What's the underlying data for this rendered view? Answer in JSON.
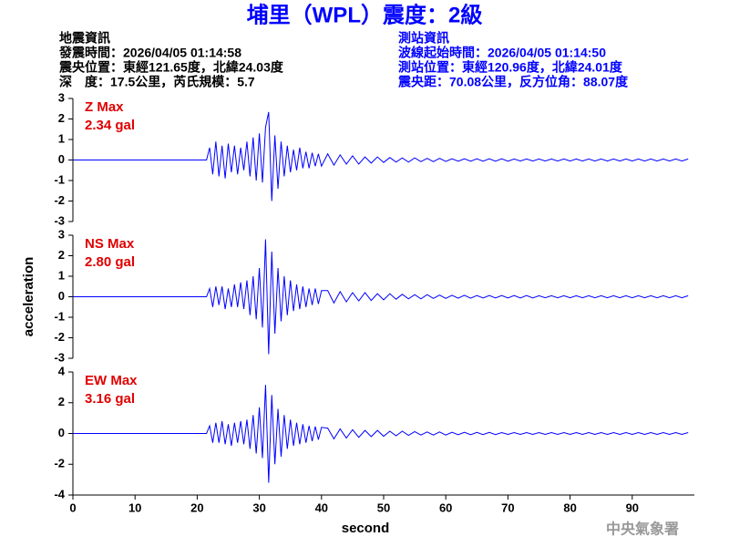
{
  "header": {
    "title": "埔里（WPL）震度：2級",
    "left": [
      "地震資訊",
      "發震時間：2026/04/05 01:14:58",
      "震央位置：東經121.65度，北緯24.03度",
      "深　度：17.5公里，芮氏規模：5.7"
    ],
    "right": [
      "測站資訊",
      "波線起始時間：2026/04/05 01:14:50",
      "測站位置：東經120.96度，北緯24.01度",
      "震央距：70.08公里，反方位角：88.07度"
    ],
    "credit": "中央氣象署"
  },
  "chart_data": [
    {
      "type": "line",
      "annotations": [
        "Z Max",
        "2.34 gal"
      ],
      "xlim": [
        0,
        100
      ],
      "ylim": [
        -3,
        3
      ],
      "yticks": [
        -3,
        -2,
        -1,
        0,
        1,
        2,
        3
      ],
      "x": [
        0,
        21.5,
        22,
        22.5,
        23,
        23.5,
        24,
        24.5,
        25,
        25.5,
        26,
        26.5,
        27,
        27.5,
        28,
        28.5,
        29,
        29.5,
        30,
        30.5,
        31,
        31.5,
        32,
        32.5,
        33,
        33.5,
        34,
        34.5,
        35,
        35.5,
        36,
        36.5,
        37,
        37.5,
        38,
        38.5,
        39,
        39.5,
        40,
        41,
        42,
        43,
        44,
        45,
        46,
        47,
        48,
        49,
        50,
        51,
        52,
        53,
        54,
        55,
        56,
        57,
        58,
        59,
        60,
        61,
        62,
        63,
        64,
        65,
        66,
        67,
        68,
        69,
        70,
        71,
        72,
        73,
        74,
        75,
        76,
        77,
        78,
        79,
        80,
        81,
        82,
        83,
        84,
        85,
        86,
        87,
        88,
        89,
        90,
        91,
        92,
        93,
        94,
        95,
        96,
        97,
        98,
        99
      ],
      "series": [
        {
          "name": "Z",
          "color": "#0000ff",
          "values": [
            0,
            0,
            0.6,
            -0.7,
            0.9,
            -0.8,
            0.7,
            -0.9,
            0.8,
            -0.6,
            0.7,
            -0.7,
            0.6,
            -0.5,
            0.9,
            -0.8,
            1.1,
            -1,
            1.3,
            -1.1,
            1.6,
            2.34,
            -2,
            1.2,
            -1.4,
            0.9,
            -0.8,
            0.7,
            -0.6,
            0.5,
            -0.5,
            0.6,
            -0.4,
            0.4,
            -0.4,
            0.35,
            -0.3,
            0.3,
            -0.3,
            0.3,
            -0.25,
            0.25,
            -0.2,
            0.2,
            -0.2,
            0.15,
            -0.15,
            0.15,
            -0.12,
            0.12,
            -0.1,
            0.1,
            -0.1,
            0.1,
            -0.08,
            0.08,
            -0.08,
            0.08,
            -0.07,
            0.06,
            -0.06,
            0.06,
            -0.06,
            0.06,
            -0.06,
            0.06,
            -0.06,
            0.06,
            -0.06,
            0.05,
            -0.05,
            0.05,
            -0.05,
            0.05,
            -0.05,
            0.05,
            -0.05,
            0.05,
            -0.05,
            0.05,
            -0.05,
            0.05,
            -0.05,
            0.05,
            -0.05,
            0.05,
            -0.05,
            0.05,
            -0.05,
            0.05,
            -0.05,
            0.05,
            -0.05,
            0.05,
            -0.05,
            0.05,
            -0.05,
            0.05
          ]
        }
      ]
    },
    {
      "type": "line",
      "annotations": [
        "NS Max",
        "2.80 gal"
      ],
      "ylabel": "acceleration",
      "xlim": [
        0,
        100
      ],
      "ylim": [
        -3,
        3
      ],
      "yticks": [
        -3,
        -2,
        -1,
        0,
        1,
        2,
        3
      ],
      "x": [
        0,
        21.5,
        22,
        22.5,
        23,
        23.5,
        24,
        24.5,
        25,
        25.5,
        26,
        26.5,
        27,
        27.5,
        28,
        28.5,
        29,
        29.5,
        30,
        30.5,
        31,
        31.5,
        32,
        32.5,
        33,
        33.5,
        34,
        34.5,
        35,
        35.5,
        36,
        36.5,
        37,
        37.5,
        38,
        38.5,
        39,
        39.5,
        40,
        41,
        42,
        43,
        44,
        45,
        46,
        47,
        48,
        49,
        50,
        51,
        52,
        53,
        54,
        55,
        56,
        57,
        58,
        59,
        60,
        61,
        62,
        63,
        64,
        65,
        66,
        67,
        68,
        69,
        70,
        71,
        72,
        73,
        74,
        75,
        76,
        77,
        78,
        79,
        80,
        81,
        82,
        83,
        84,
        85,
        86,
        87,
        88,
        89,
        90,
        91,
        92,
        93,
        94,
        95,
        96,
        97,
        98,
        99
      ],
      "series": [
        {
          "name": "NS",
          "color": "#0000ff",
          "values": [
            0,
            0,
            0.4,
            -0.5,
            0.5,
            -0.4,
            0.5,
            -0.6,
            0.4,
            -0.5,
            0.6,
            -0.5,
            0.7,
            -0.6,
            0.8,
            -0.9,
            1,
            -1.1,
            1.4,
            -1.5,
            2.8,
            -2.8,
            2.2,
            -1.8,
            1.4,
            -1.2,
            1,
            -0.9,
            0.8,
            -0.7,
            0.6,
            -0.6,
            0.5,
            -0.5,
            0.4,
            -0.4,
            0.4,
            -0.35,
            0.3,
            0.3,
            -0.3,
            0.25,
            -0.25,
            0.2,
            -0.2,
            0.2,
            -0.18,
            0.15,
            -0.15,
            0.15,
            -0.12,
            0.12,
            -0.1,
            0.1,
            -0.1,
            0.1,
            -0.08,
            0.08,
            -0.08,
            0.07,
            -0.07,
            0.07,
            -0.07,
            0.06,
            -0.06,
            0.06,
            -0.06,
            0.06,
            -0.06,
            0.06,
            -0.06,
            0.06,
            -0.06,
            0.05,
            -0.05,
            0.05,
            -0.05,
            0.05,
            -0.05,
            0.05,
            -0.05,
            0.05,
            -0.05,
            0.05,
            -0.05,
            0.05,
            -0.05,
            0.05,
            -0.05,
            0.05,
            -0.05,
            0.05,
            -0.05,
            0.05,
            -0.05,
            0.05,
            -0.05,
            0.05
          ]
        }
      ]
    },
    {
      "type": "line",
      "annotations": [
        "EW Max",
        "3.16 gal"
      ],
      "xlabel": "second",
      "xlim": [
        0,
        100
      ],
      "ylim": [
        -4,
        4
      ],
      "yticks": [
        -4,
        -2,
        0,
        2,
        4
      ],
      "xticks": [
        0,
        10,
        20,
        30,
        40,
        50,
        60,
        70,
        80,
        90
      ],
      "x": [
        0,
        21.5,
        22,
        22.5,
        23,
        23.5,
        24,
        24.5,
        25,
        25.5,
        26,
        26.5,
        27,
        27.5,
        28,
        28.5,
        29,
        29.5,
        30,
        30.5,
        31,
        31.5,
        32,
        32.5,
        33,
        33.5,
        34,
        34.5,
        35,
        35.5,
        36,
        36.5,
        37,
        37.5,
        38,
        38.5,
        39,
        39.5,
        40,
        41,
        42,
        43,
        44,
        45,
        46,
        47,
        48,
        49,
        50,
        51,
        52,
        53,
        54,
        55,
        56,
        57,
        58,
        59,
        60,
        61,
        62,
        63,
        64,
        65,
        66,
        67,
        68,
        69,
        70,
        71,
        72,
        73,
        74,
        75,
        76,
        77,
        78,
        79,
        80,
        81,
        82,
        83,
        84,
        85,
        86,
        87,
        88,
        89,
        90,
        91,
        92,
        93,
        94,
        95,
        96,
        97,
        98,
        99
      ],
      "series": [
        {
          "name": "EW",
          "color": "#0000ff",
          "values": [
            0,
            0,
            0.5,
            -0.6,
            0.7,
            -0.6,
            0.8,
            -0.7,
            0.6,
            -0.8,
            0.7,
            -0.6,
            0.8,
            -0.7,
            0.9,
            -1,
            1.2,
            -1.3,
            1.7,
            -1.6,
            3.16,
            -3.2,
            2.5,
            -2,
            1.6,
            -1.5,
            1.2,
            -1,
            0.9,
            -0.8,
            0.7,
            -0.7,
            0.6,
            -0.6,
            0.5,
            -0.5,
            0.45,
            -0.4,
            0.4,
            0.35,
            -0.35,
            0.3,
            -0.3,
            0.25,
            -0.25,
            0.2,
            -0.2,
            0.2,
            -0.18,
            0.15,
            -0.15,
            0.15,
            -0.12,
            0.12,
            -0.1,
            0.1,
            -0.1,
            0.1,
            -0.1,
            0.08,
            -0.08,
            0.08,
            -0.08,
            0.07,
            -0.07,
            0.07,
            -0.07,
            0.06,
            -0.06,
            0.06,
            -0.06,
            0.06,
            -0.06,
            0.06,
            -0.06,
            0.06,
            -0.06,
            0.06,
            -0.06,
            0.06,
            -0.06,
            0.06,
            -0.06,
            0.06,
            -0.06,
            0.06,
            -0.06,
            0.06,
            -0.06,
            0.06,
            -0.06,
            0.06,
            -0.06,
            0.06,
            -0.06,
            0.06,
            -0.06,
            0.06
          ]
        }
      ]
    }
  ]
}
